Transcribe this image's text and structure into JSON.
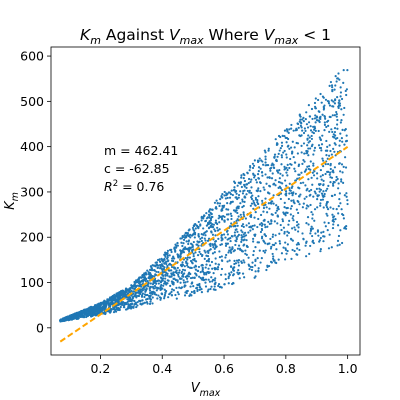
{
  "chart_data": {
    "type": "scatter",
    "title_parts": [
      {
        "text": "K",
        "italic": true
      },
      {
        "text": "m",
        "sub": true,
        "italic": true
      },
      {
        "text": " Against "
      },
      {
        "text": "V",
        "italic": true
      },
      {
        "text": "max",
        "sub": true,
        "italic": true
      },
      {
        "text": " Where "
      },
      {
        "text": "V",
        "italic": true
      },
      {
        "text": "max",
        "sub": true,
        "italic": true
      },
      {
        "text": " < 1"
      }
    ],
    "xlabel_parts": [
      {
        "text": "V",
        "italic": true
      },
      {
        "text": "max",
        "sub": true,
        "italic": true
      }
    ],
    "ylabel_parts": [
      {
        "text": "K",
        "italic": true
      },
      {
        "text": "m",
        "sub": true,
        "italic": true
      }
    ],
    "xlim": [
      0.04,
      1.04
    ],
    "ylim": [
      -60,
      620
    ],
    "x_ticks": [
      0.2,
      0.4,
      0.6,
      0.8,
      1.0
    ],
    "x_tick_labels": [
      "0.2",
      "0.4",
      "0.6",
      "0.8",
      "1.0"
    ],
    "y_ticks": [
      0,
      100,
      200,
      300,
      400,
      500,
      600
    ],
    "y_tick_labels": [
      "0",
      "100",
      "200",
      "300",
      "400",
      "500",
      "600"
    ],
    "grid": false,
    "series": [
      {
        "kind": "scatter",
        "color": "#1f77b4",
        "n_points": 3000,
        "x_range": [
          0.07,
          1.0
        ],
        "upper_envelope": [
          [
            0.07,
            18
          ],
          [
            0.2,
            55
          ],
          [
            0.3,
            95
          ],
          [
            0.4,
            160
          ],
          [
            0.5,
            225
          ],
          [
            0.6,
            300
          ],
          [
            0.7,
            370
          ],
          [
            0.8,
            440
          ],
          [
            0.9,
            510
          ],
          [
            1.0,
            590
          ]
        ],
        "lower_envelope": [
          [
            0.07,
            14
          ],
          [
            0.2,
            28
          ],
          [
            0.3,
            42
          ],
          [
            0.4,
            58
          ],
          [
            0.5,
            70
          ],
          [
            0.6,
            88
          ],
          [
            0.7,
            110
          ],
          [
            0.8,
            135
          ],
          [
            0.9,
            160
          ],
          [
            1.0,
            185
          ]
        ]
      },
      {
        "kind": "fit_line",
        "color": "#ffa500",
        "dashed": true,
        "slope": 462.41,
        "intercept": -62.85,
        "x_range": [
          0.07,
          1.0
        ]
      }
    ],
    "annotations": {
      "m_line": "m = 462.41",
      "c_line": "c = -62.85",
      "r2_symbol": "R",
      "r2_exp": "2",
      "r2_value": " = 0.76"
    }
  }
}
